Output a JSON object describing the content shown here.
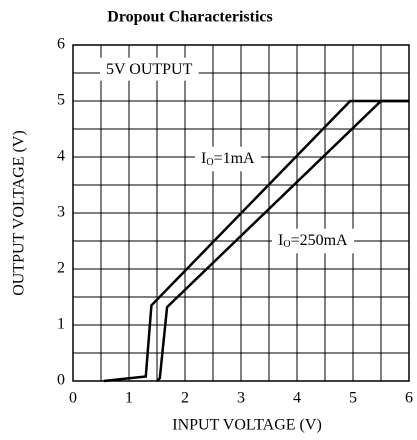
{
  "chart_data": {
    "type": "line",
    "title": "Dropout Characteristics",
    "xlabel": "INPUT VOLTAGE (V)",
    "ylabel": "OUTPUT VOLTAGE (V)",
    "xlim": [
      0,
      6
    ],
    "ylim": [
      0,
      6
    ],
    "xticks": [
      0,
      1,
      2,
      3,
      4,
      5,
      6
    ],
    "yticks": [
      0,
      1,
      2,
      3,
      4,
      5,
      6
    ],
    "grid": true,
    "minor_grid_step": 0.5,
    "series": [
      {
        "color": "#000000",
        "x": [
          0.55,
          1.3,
          1.4,
          4.95,
          6
        ],
        "values": [
          0,
          0.08,
          1.35,
          5,
          5
        ]
      },
      {
        "color": "#000000",
        "x": [
          1.5,
          1.55,
          1.68,
          5.5,
          6
        ],
        "values": [
          0,
          0.05,
          1.32,
          5,
          5
        ]
      }
    ],
    "annotations": [
      {
        "text": "5V OUTPUT"
      },
      {
        "label": "I",
        "subscript": "O",
        "text": "=1mA"
      },
      {
        "label": "I",
        "subscript": "O",
        "text": "=250mA"
      }
    ]
  }
}
